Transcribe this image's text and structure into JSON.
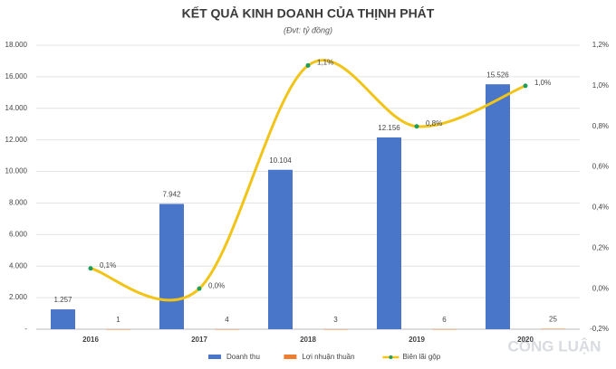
{
  "chart_data": {
    "type": "bar-line",
    "title": "KẾT QUẢ KINH DOANH CỦA THỊNH PHÁT",
    "subtitle": "(Đvt: tỷ đồng)",
    "watermark": "CÔNG LUẬN",
    "categories": [
      "2016",
      "2017",
      "2018",
      "2019",
      "2020"
    ],
    "series": [
      {
        "name": "Doanh thu",
        "type": "bar",
        "color": "#4a76c9",
        "values": [
          1257,
          7942,
          10104,
          12156,
          15526
        ],
        "value_labels": [
          "1.257",
          "7.942",
          "10.104",
          "12.156",
          "15.526"
        ]
      },
      {
        "name": "Lợi nhuận thuần",
        "type": "bar",
        "color": "#ed7d31",
        "values": [
          1,
          4,
          3,
          6,
          25
        ]
      },
      {
        "name": "Biên lãi gộp",
        "type": "line",
        "axis": "y2",
        "color": "#f2c418",
        "marker_color": "#1e9e5a",
        "smooth": true,
        "values": [
          0.1,
          0.0,
          1.1,
          0.8,
          1.0
        ],
        "value_labels": [
          "0,1%",
          "0,0%",
          "1,1%",
          "0,8%",
          "1,0%"
        ]
      }
    ],
    "ylim": [
      0,
      18000
    ],
    "yticks": [
      {
        "value": 0,
        "label": "-"
      },
      {
        "value": 2000,
        "label": "2.000"
      },
      {
        "value": 4000,
        "label": "4.000"
      },
      {
        "value": 6000,
        "label": "6.000"
      },
      {
        "value": 8000,
        "label": "8.000"
      },
      {
        "value": 10000,
        "label": "10.000"
      },
      {
        "value": 12000,
        "label": "12.000"
      },
      {
        "value": 14000,
        "label": "14.000"
      },
      {
        "value": 16000,
        "label": "16.000"
      },
      {
        "value": 18000,
        "label": "18.000"
      }
    ],
    "y2lim": [
      -0.2,
      1.2
    ],
    "y2ticks": [
      {
        "value": -0.2,
        "label": "-0,2%"
      },
      {
        "value": 0,
        "label": "0,0%"
      },
      {
        "value": 0.2,
        "label": "0,2%"
      },
      {
        "value": 0.4,
        "label": "0,4%"
      },
      {
        "value": 0.6,
        "label": "0,6%"
      },
      {
        "value": 0.8,
        "label": "0,8%"
      },
      {
        "value": 1.0,
        "label": "1,0%"
      },
      {
        "value": 1.2,
        "label": "1,2%"
      }
    ],
    "grid": true
  }
}
